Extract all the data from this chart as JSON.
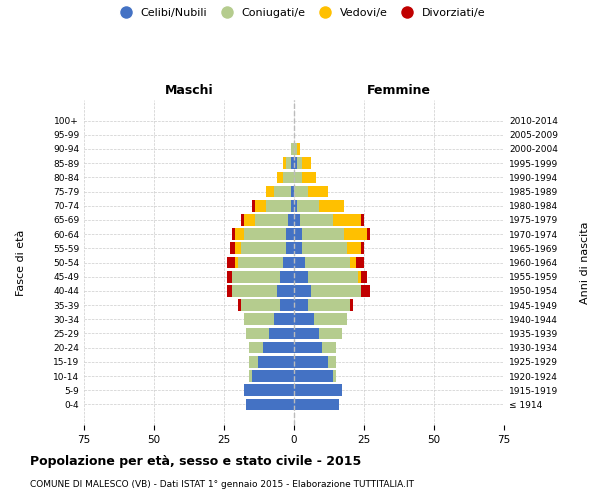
{
  "age_groups": [
    "100+",
    "95-99",
    "90-94",
    "85-89",
    "80-84",
    "75-79",
    "70-74",
    "65-69",
    "60-64",
    "55-59",
    "50-54",
    "45-49",
    "40-44",
    "35-39",
    "30-34",
    "25-29",
    "20-24",
    "15-19",
    "10-14",
    "5-9",
    "0-4"
  ],
  "birth_years": [
    "≤ 1914",
    "1915-1919",
    "1920-1924",
    "1925-1929",
    "1930-1934",
    "1935-1939",
    "1940-1944",
    "1945-1949",
    "1950-1954",
    "1955-1959",
    "1960-1964",
    "1965-1969",
    "1970-1974",
    "1975-1979",
    "1980-1984",
    "1985-1989",
    "1990-1994",
    "1995-1999",
    "2000-2004",
    "2005-2009",
    "2010-2014"
  ],
  "males_celibi": [
    0,
    0,
    0,
    1,
    0,
    1,
    1,
    2,
    3,
    3,
    4,
    5,
    6,
    5,
    7,
    9,
    11,
    13,
    15,
    18,
    17
  ],
  "males_coniugati": [
    0,
    0,
    1,
    2,
    4,
    6,
    9,
    12,
    15,
    16,
    16,
    17,
    16,
    14,
    11,
    8,
    5,
    3,
    1,
    0,
    0
  ],
  "males_vedovi": [
    0,
    0,
    0,
    1,
    2,
    3,
    4,
    4,
    3,
    2,
    1,
    0,
    0,
    0,
    0,
    0,
    0,
    0,
    0,
    0,
    0
  ],
  "males_div": [
    0,
    0,
    0,
    0,
    0,
    0,
    1,
    1,
    1,
    2,
    3,
    2,
    2,
    1,
    0,
    0,
    0,
    0,
    0,
    0,
    0
  ],
  "females_nubili": [
    0,
    0,
    0,
    1,
    0,
    0,
    1,
    2,
    3,
    3,
    4,
    5,
    6,
    5,
    7,
    9,
    10,
    12,
    14,
    17,
    16
  ],
  "females_coniugate": [
    0,
    0,
    1,
    2,
    3,
    5,
    8,
    12,
    15,
    16,
    16,
    18,
    18,
    15,
    12,
    8,
    5,
    3,
    1,
    0,
    0
  ],
  "females_vedove": [
    0,
    0,
    1,
    3,
    5,
    7,
    9,
    10,
    8,
    5,
    2,
    1,
    0,
    0,
    0,
    0,
    0,
    0,
    0,
    0,
    0
  ],
  "females_div": [
    0,
    0,
    0,
    0,
    0,
    0,
    0,
    1,
    1,
    1,
    3,
    2,
    3,
    1,
    0,
    0,
    0,
    0,
    0,
    0,
    0
  ],
  "color_celibi": "#4472c4",
  "color_coniugati": "#b5cc8e",
  "color_vedovi": "#ffc000",
  "color_divorziati": "#c00000",
  "xlim": 75,
  "title": "Popolazione per età, sesso e stato civile - 2015",
  "subtitle": "COMUNE DI MALESCO (VB) - Dati ISTAT 1° gennaio 2015 - Elaborazione TUTTITALIA.IT",
  "ylabel_left": "Fasce di età",
  "ylabel_right": "Anni di nascita",
  "xlabel_left": "Maschi",
  "xlabel_right": "Femmine",
  "legend_labels": [
    "Celibi/Nubili",
    "Coniugati/e",
    "Vedovi/e",
    "Divorziati/e"
  ]
}
